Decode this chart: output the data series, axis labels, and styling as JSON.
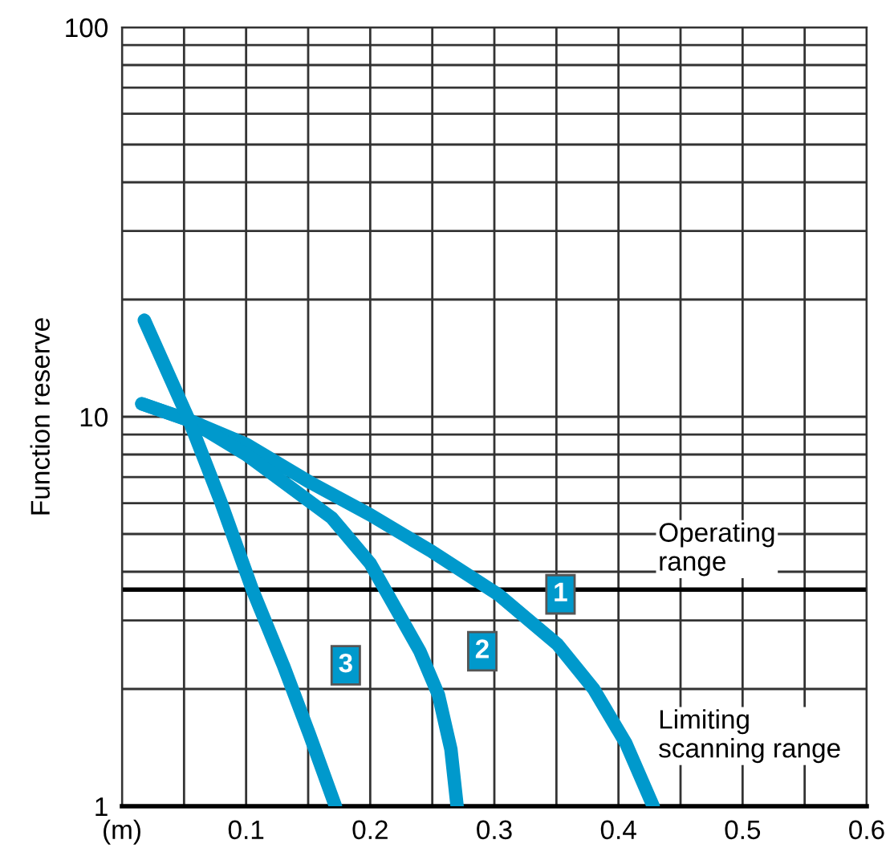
{
  "chart_data": {
    "type": "line",
    "ylabel": "Function reserve",
    "log": "y",
    "xlim": [
      0,
      0.6
    ],
    "ylim": [
      1,
      100
    ],
    "xticks": [
      {
        "value": 0,
        "label": "(m)"
      },
      {
        "value": 0.05,
        "label": null
      },
      0.1,
      {
        "value": 0.15,
        "label": null
      },
      0.2,
      {
        "value": 0.25,
        "label": null
      },
      0.3,
      {
        "value": 0.35,
        "label": null
      },
      0.4,
      {
        "value": 0.45,
        "label": null
      },
      0.5,
      {
        "value": 0.55,
        "label": null
      },
      0.6
    ],
    "yticks": [
      1,
      {
        "value": 2,
        "label": null
      },
      {
        "value": 3,
        "label": null
      },
      {
        "value": 4,
        "label": null
      },
      {
        "value": 5,
        "label": null
      },
      {
        "value": 6,
        "label": null
      },
      {
        "value": 7,
        "label": null
      },
      {
        "value": 8,
        "label": null
      },
      {
        "value": 9,
        "label": null
      },
      10,
      {
        "value": 20,
        "label": null
      },
      {
        "value": 30,
        "label": null
      },
      {
        "value": 40,
        "label": null
      },
      {
        "value": 50,
        "label": null
      },
      {
        "value": 60,
        "label": null
      },
      {
        "value": 70,
        "label": null
      },
      {
        "value": 80,
        "label": null
      },
      {
        "value": 90,
        "label": null
      },
      100
    ],
    "grid": true,
    "legend": false,
    "marker": "none",
    "line_style": "solid",
    "series": [
      {
        "name": "1",
        "color": "#0099cc",
        "x": [
          0.016,
          0.054,
          0.1,
          0.151,
          0.2,
          0.25,
          0.303,
          0.351,
          0.38,
          0.406,
          0.428
        ],
        "values": [
          10.8,
          9.8,
          8.5,
          6.8,
          5.6,
          4.5,
          3.5,
          2.6,
          2.0,
          1.45,
          1
        ]
      },
      {
        "name": "2",
        "color": "#0099cc",
        "x": [
          0.016,
          0.054,
          0.1,
          0.169,
          0.2,
          0.221,
          0.24,
          0.255,
          0.265,
          0.27
        ],
        "values": [
          10.8,
          9.8,
          8.0,
          5.5,
          4.2,
          3.2,
          2.5,
          1.93,
          1.4,
          1
        ]
      },
      {
        "name": "3",
        "color": "#0099cc",
        "x": [
          0.018,
          0.054,
          0.08,
          0.105,
          0.13,
          0.151,
          0.172
        ],
        "values": [
          17.7,
          9.8,
          6.0,
          3.6,
          2.3,
          1.53,
          1
        ]
      }
    ],
    "ref_lines": [
      {
        "axis": "y",
        "value": 3.6,
        "color": "#000000"
      }
    ],
    "annotations": [
      "Operating\nrange",
      "Limiting\nscanning range"
    ]
  }
}
